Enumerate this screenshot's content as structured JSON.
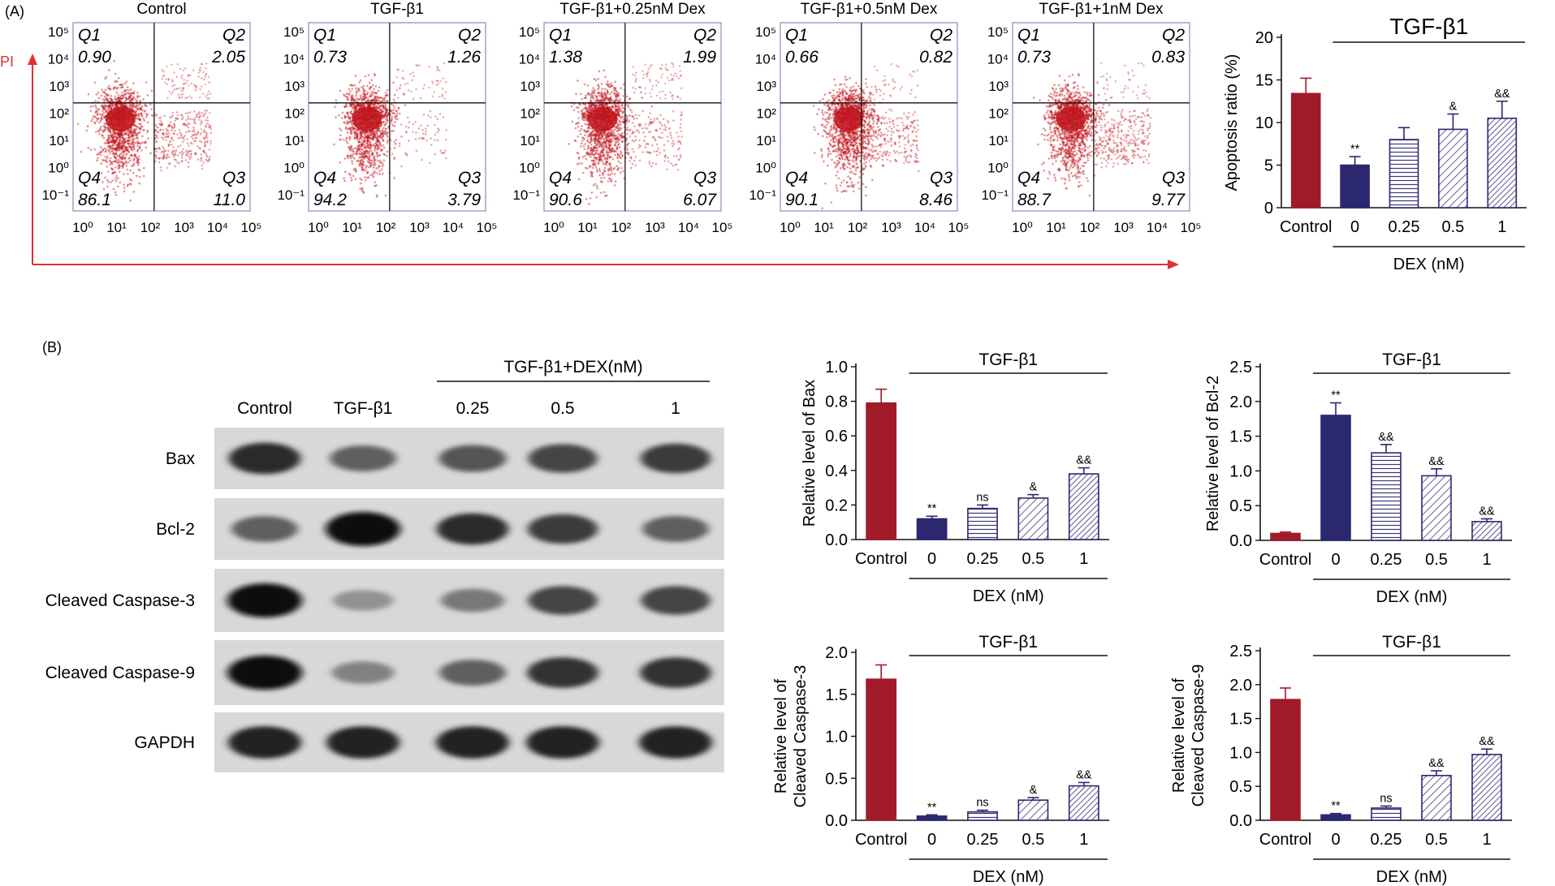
{
  "colors": {
    "control": "#a01a2a",
    "tgf": "#2b2870",
    "hatch": "#3a3a7a",
    "flow_dots": "#c0161f",
    "pi_arrow": "#e03030"
  },
  "panel_a": {
    "label": "(A)",
    "axis_label": "PI",
    "log_ticks": [
      "10⁰",
      "10¹",
      "10²",
      "10³",
      "10⁴",
      "10⁵"
    ],
    "log_ticks_y": [
      "10⁵",
      "10⁴",
      "10³",
      "10²",
      "10¹",
      "10⁰",
      "10⁻¹"
    ],
    "plots": [
      {
        "title": "Control",
        "q1": "0.90",
        "q2": "2.05",
        "q3": "11.0",
        "q4": "86.1"
      },
      {
        "title": "TGF-β1",
        "q1": "0.73",
        "q2": "1.26",
        "q3": "3.79",
        "q4": "94.2"
      },
      {
        "title": "TGF-β1+0.25nM Dex",
        "q1": "1.38",
        "q2": "1.99",
        "q3": "6.07",
        "q4": "90.6"
      },
      {
        "title": "TGF-β1+0.5nM Dex",
        "q1": "0.66",
        "q2": "0.82",
        "q3": "8.46",
        "q4": "90.1"
      },
      {
        "title": "TGF-β1+1nM Dex",
        "q1": "0.73",
        "q2": "0.83",
        "q3": "9.77",
        "q4": "88.7"
      }
    ],
    "quadrant_names": [
      "Q1",
      "Q2",
      "Q3",
      "Q4"
    ]
  },
  "panel_b": {
    "label": "(B)",
    "blot_group_label": "TGF-β1+DEX(nM)",
    "lanes": [
      "Control",
      "TGF-β1",
      "0.25",
      "0.5",
      "1"
    ],
    "proteins": [
      "Bax",
      "Bcl-2",
      "Cleaved Caspase-3",
      "Cleaved Caspase-9",
      "GAPDH"
    ],
    "band_intensity": [
      [
        0.85,
        0.55,
        0.6,
        0.7,
        0.75
      ],
      [
        0.55,
        1.0,
        0.85,
        0.75,
        0.55
      ],
      [
        1.0,
        0.25,
        0.4,
        0.7,
        0.7
      ],
      [
        1.0,
        0.35,
        0.55,
        0.8,
        0.8
      ],
      [
        0.9,
        0.9,
        0.9,
        0.9,
        0.9
      ]
    ]
  },
  "chart_data": [
    {
      "type": "bar",
      "categories": [
        "Control",
        "0",
        "0.25",
        "0.5",
        "1"
      ],
      "values": [
        13.4,
        5.0,
        8.0,
        9.2,
        10.5
      ],
      "errors": [
        1.8,
        1.0,
        1.4,
        1.8,
        2.0
      ],
      "annotations": [
        "",
        "**",
        "",
        "&",
        "&&"
      ],
      "group_label": "TGF-β1",
      "xlabel": "DEX (nM)",
      "ylabel": "Apoptosis ratio (%)",
      "ylim": [
        0,
        20
      ],
      "yticks": [
        0,
        5,
        10,
        15,
        20
      ],
      "ytick_labels": [
        "0",
        "5",
        "10",
        "15",
        "20"
      ],
      "fills": [
        "solid-control",
        "solid-tgf",
        "horizontal",
        "diagonal",
        "diagonal-dense"
      ]
    },
    {
      "type": "bar",
      "categories": [
        "Control",
        "0",
        "0.25",
        "0.5",
        "1"
      ],
      "values": [
        0.79,
        0.12,
        0.18,
        0.24,
        0.38
      ],
      "errors": [
        0.08,
        0.015,
        0.02,
        0.02,
        0.035
      ],
      "annotations": [
        "",
        "**",
        "ns",
        "&",
        "&&"
      ],
      "group_label": "TGF-β1",
      "xlabel": "DEX (nM)",
      "ylabel": "Relative level of Bax",
      "ylim": [
        0,
        1.0
      ],
      "yticks": [
        0,
        0.2,
        0.4,
        0.6,
        0.8,
        1.0
      ],
      "ytick_labels": [
        "0.0",
        "0.2",
        "0.4",
        "0.6",
        "0.8",
        "1.0"
      ],
      "fills": [
        "solid-control",
        "solid-tgf",
        "horizontal",
        "diagonal",
        "diagonal-dense"
      ]
    },
    {
      "type": "bar",
      "categories": [
        "Control",
        "0",
        "0.25",
        "0.5",
        "1"
      ],
      "values": [
        0.1,
        1.8,
        1.26,
        0.93,
        0.27
      ],
      "errors": [
        0.02,
        0.18,
        0.12,
        0.1,
        0.04
      ],
      "annotations": [
        "",
        "**",
        "&&",
        "&&",
        "&&"
      ],
      "group_label": "TGF-β1",
      "xlabel": "DEX (nM)",
      "ylabel": "Relative level of Bcl-2",
      "ylim": [
        0,
        2.5
      ],
      "yticks": [
        0,
        0.5,
        1.0,
        1.5,
        2.0,
        2.5
      ],
      "ytick_labels": [
        "0.0",
        "0.5",
        "1.0",
        "1.5",
        "2.0",
        "2.5"
      ],
      "fills": [
        "solid-control",
        "solid-tgf",
        "horizontal",
        "diagonal",
        "diagonal-dense"
      ]
    },
    {
      "type": "bar",
      "categories": [
        "Control",
        "0",
        "0.25",
        "0.5",
        "1"
      ],
      "values": [
        1.68,
        0.05,
        0.1,
        0.24,
        0.41
      ],
      "errors": [
        0.17,
        0.015,
        0.02,
        0.03,
        0.04
      ],
      "annotations": [
        "",
        "**",
        "ns",
        "&",
        "&&"
      ],
      "group_label": "TGF-β1",
      "xlabel": "DEX (nM)",
      "ylabel": "Relative level of Cleaved Caspase-3",
      "ylabel_lines": [
        "Relative level of",
        "Cleaved Caspase-3"
      ],
      "ylim": [
        0,
        2.0
      ],
      "yticks": [
        0,
        0.5,
        1.0,
        1.5,
        2.0
      ],
      "ytick_labels": [
        "0.0",
        "0.5",
        "1.0",
        "1.5",
        "2.0"
      ],
      "fills": [
        "solid-control",
        "solid-tgf",
        "horizontal",
        "diagonal",
        "diagonal-dense"
      ]
    },
    {
      "type": "bar",
      "categories": [
        "Control",
        "0",
        "0.25",
        "0.5",
        "1"
      ],
      "values": [
        1.78,
        0.08,
        0.18,
        0.66,
        0.97
      ],
      "errors": [
        0.17,
        0.02,
        0.03,
        0.07,
        0.08
      ],
      "annotations": [
        "",
        "**",
        "ns",
        "&&",
        "&&"
      ],
      "group_label": "TGF-β1",
      "xlabel": "DEX (nM)",
      "ylabel": "Relative level of Cleaved Caspase-9",
      "ylabel_lines": [
        "Relative level of",
        "Cleaved Caspase-9"
      ],
      "ylim": [
        0,
        2.5
      ],
      "yticks": [
        0,
        0.5,
        1.0,
        1.5,
        2.0,
        2.5
      ],
      "ytick_labels": [
        "0.0",
        "0.5",
        "1.0",
        "1.5",
        "2.0",
        "2.5"
      ],
      "fills": [
        "solid-control",
        "solid-tgf",
        "horizontal",
        "diagonal",
        "diagonal-dense"
      ]
    }
  ]
}
